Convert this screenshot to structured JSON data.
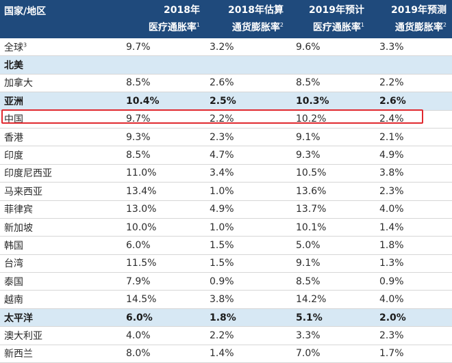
{
  "header": {
    "col0": "国家/地区",
    "col1_line1": "2018年",
    "col1_line2": "医疗通胀率",
    "col1_sup": "1",
    "col2_line1": "2018年估算",
    "col2_line2": "通货膨胀率",
    "col2_sup": "2",
    "col3_line1": "2019年预计",
    "col3_line2": "医疗通胀率",
    "col3_sup": "1",
    "col4_line1": "2019年预测",
    "col4_line2": "通货膨胀率",
    "col4_sup": "2"
  },
  "rows": [
    {
      "name": "全球",
      "sup": "3",
      "v1": "9.7%",
      "v2": "3.2%",
      "v3": "9.6%",
      "v4": "3.3%",
      "region": false
    },
    {
      "name": "北美",
      "sup": "",
      "v1": "",
      "v2": "",
      "v3": "",
      "v4": "",
      "region": true
    },
    {
      "name": "加拿大",
      "sup": "",
      "v1": "8.5%",
      "v2": "2.6%",
      "v3": "8.5%",
      "v4": "2.2%",
      "region": false
    },
    {
      "name": "亚洲",
      "sup": "",
      "v1": "10.4%",
      "v2": "2.5%",
      "v3": "10.3%",
      "v4": "2.6%",
      "region": true
    },
    {
      "name": "中国",
      "sup": "",
      "v1": "9.7%",
      "v2": "2.2%",
      "v3": "10.2%",
      "v4": "2.4%",
      "region": false
    },
    {
      "name": "香港",
      "sup": "",
      "v1": "9.3%",
      "v2": "2.3%",
      "v3": "9.1%",
      "v4": "2.1%",
      "region": false
    },
    {
      "name": "印度",
      "sup": "",
      "v1": "8.5%",
      "v2": "4.7%",
      "v3": "9.3%",
      "v4": "4.9%",
      "region": false
    },
    {
      "name": "印度尼西亚",
      "sup": "",
      "v1": "11.0%",
      "v2": "3.4%",
      "v3": "10.5%",
      "v4": "3.8%",
      "region": false
    },
    {
      "name": "马来西亚",
      "sup": "",
      "v1": "13.4%",
      "v2": "1.0%",
      "v3": "13.6%",
      "v4": "2.3%",
      "region": false
    },
    {
      "name": "菲律宾",
      "sup": "",
      "v1": "13.0%",
      "v2": "4.9%",
      "v3": "13.7%",
      "v4": "4.0%",
      "region": false
    },
    {
      "name": "新加坡",
      "sup": "",
      "v1": "10.0%",
      "v2": "1.0%",
      "v3": "10.1%",
      "v4": "1.4%",
      "region": false
    },
    {
      "name": "韩国",
      "sup": "",
      "v1": "6.0%",
      "v2": "1.5%",
      "v3": "5.0%",
      "v4": "1.8%",
      "region": false
    },
    {
      "name": "台湾",
      "sup": "",
      "v1": "11.5%",
      "v2": "1.5%",
      "v3": "9.1%",
      "v4": "1.3%",
      "region": false
    },
    {
      "name": "泰国",
      "sup": "",
      "v1": "7.9%",
      "v2": "0.9%",
      "v3": "8.5%",
      "v4": "0.9%",
      "region": false
    },
    {
      "name": "越南",
      "sup": "",
      "v1": "14.5%",
      "v2": "3.8%",
      "v3": "14.2%",
      "v4": "4.0%",
      "region": false
    },
    {
      "name": "太平洋",
      "sup": "",
      "v1": "6.0%",
      "v2": "1.8%",
      "v3": "5.1%",
      "v4": "2.0%",
      "region": true
    },
    {
      "name": "澳大利亚",
      "sup": "",
      "v1": "4.0%",
      "v2": "2.2%",
      "v3": "3.3%",
      "v4": "2.3%",
      "region": false
    },
    {
      "name": "新西兰",
      "sup": "",
      "v1": "8.0%",
      "v2": "1.4%",
      "v3": "7.0%",
      "v4": "1.7%",
      "region": false
    }
  ],
  "highlighted_row": "中国",
  "colors": {
    "header_bg": "#1f4a7c",
    "region_bg": "#d7e8f4",
    "highlight_border": "#e0282e"
  }
}
